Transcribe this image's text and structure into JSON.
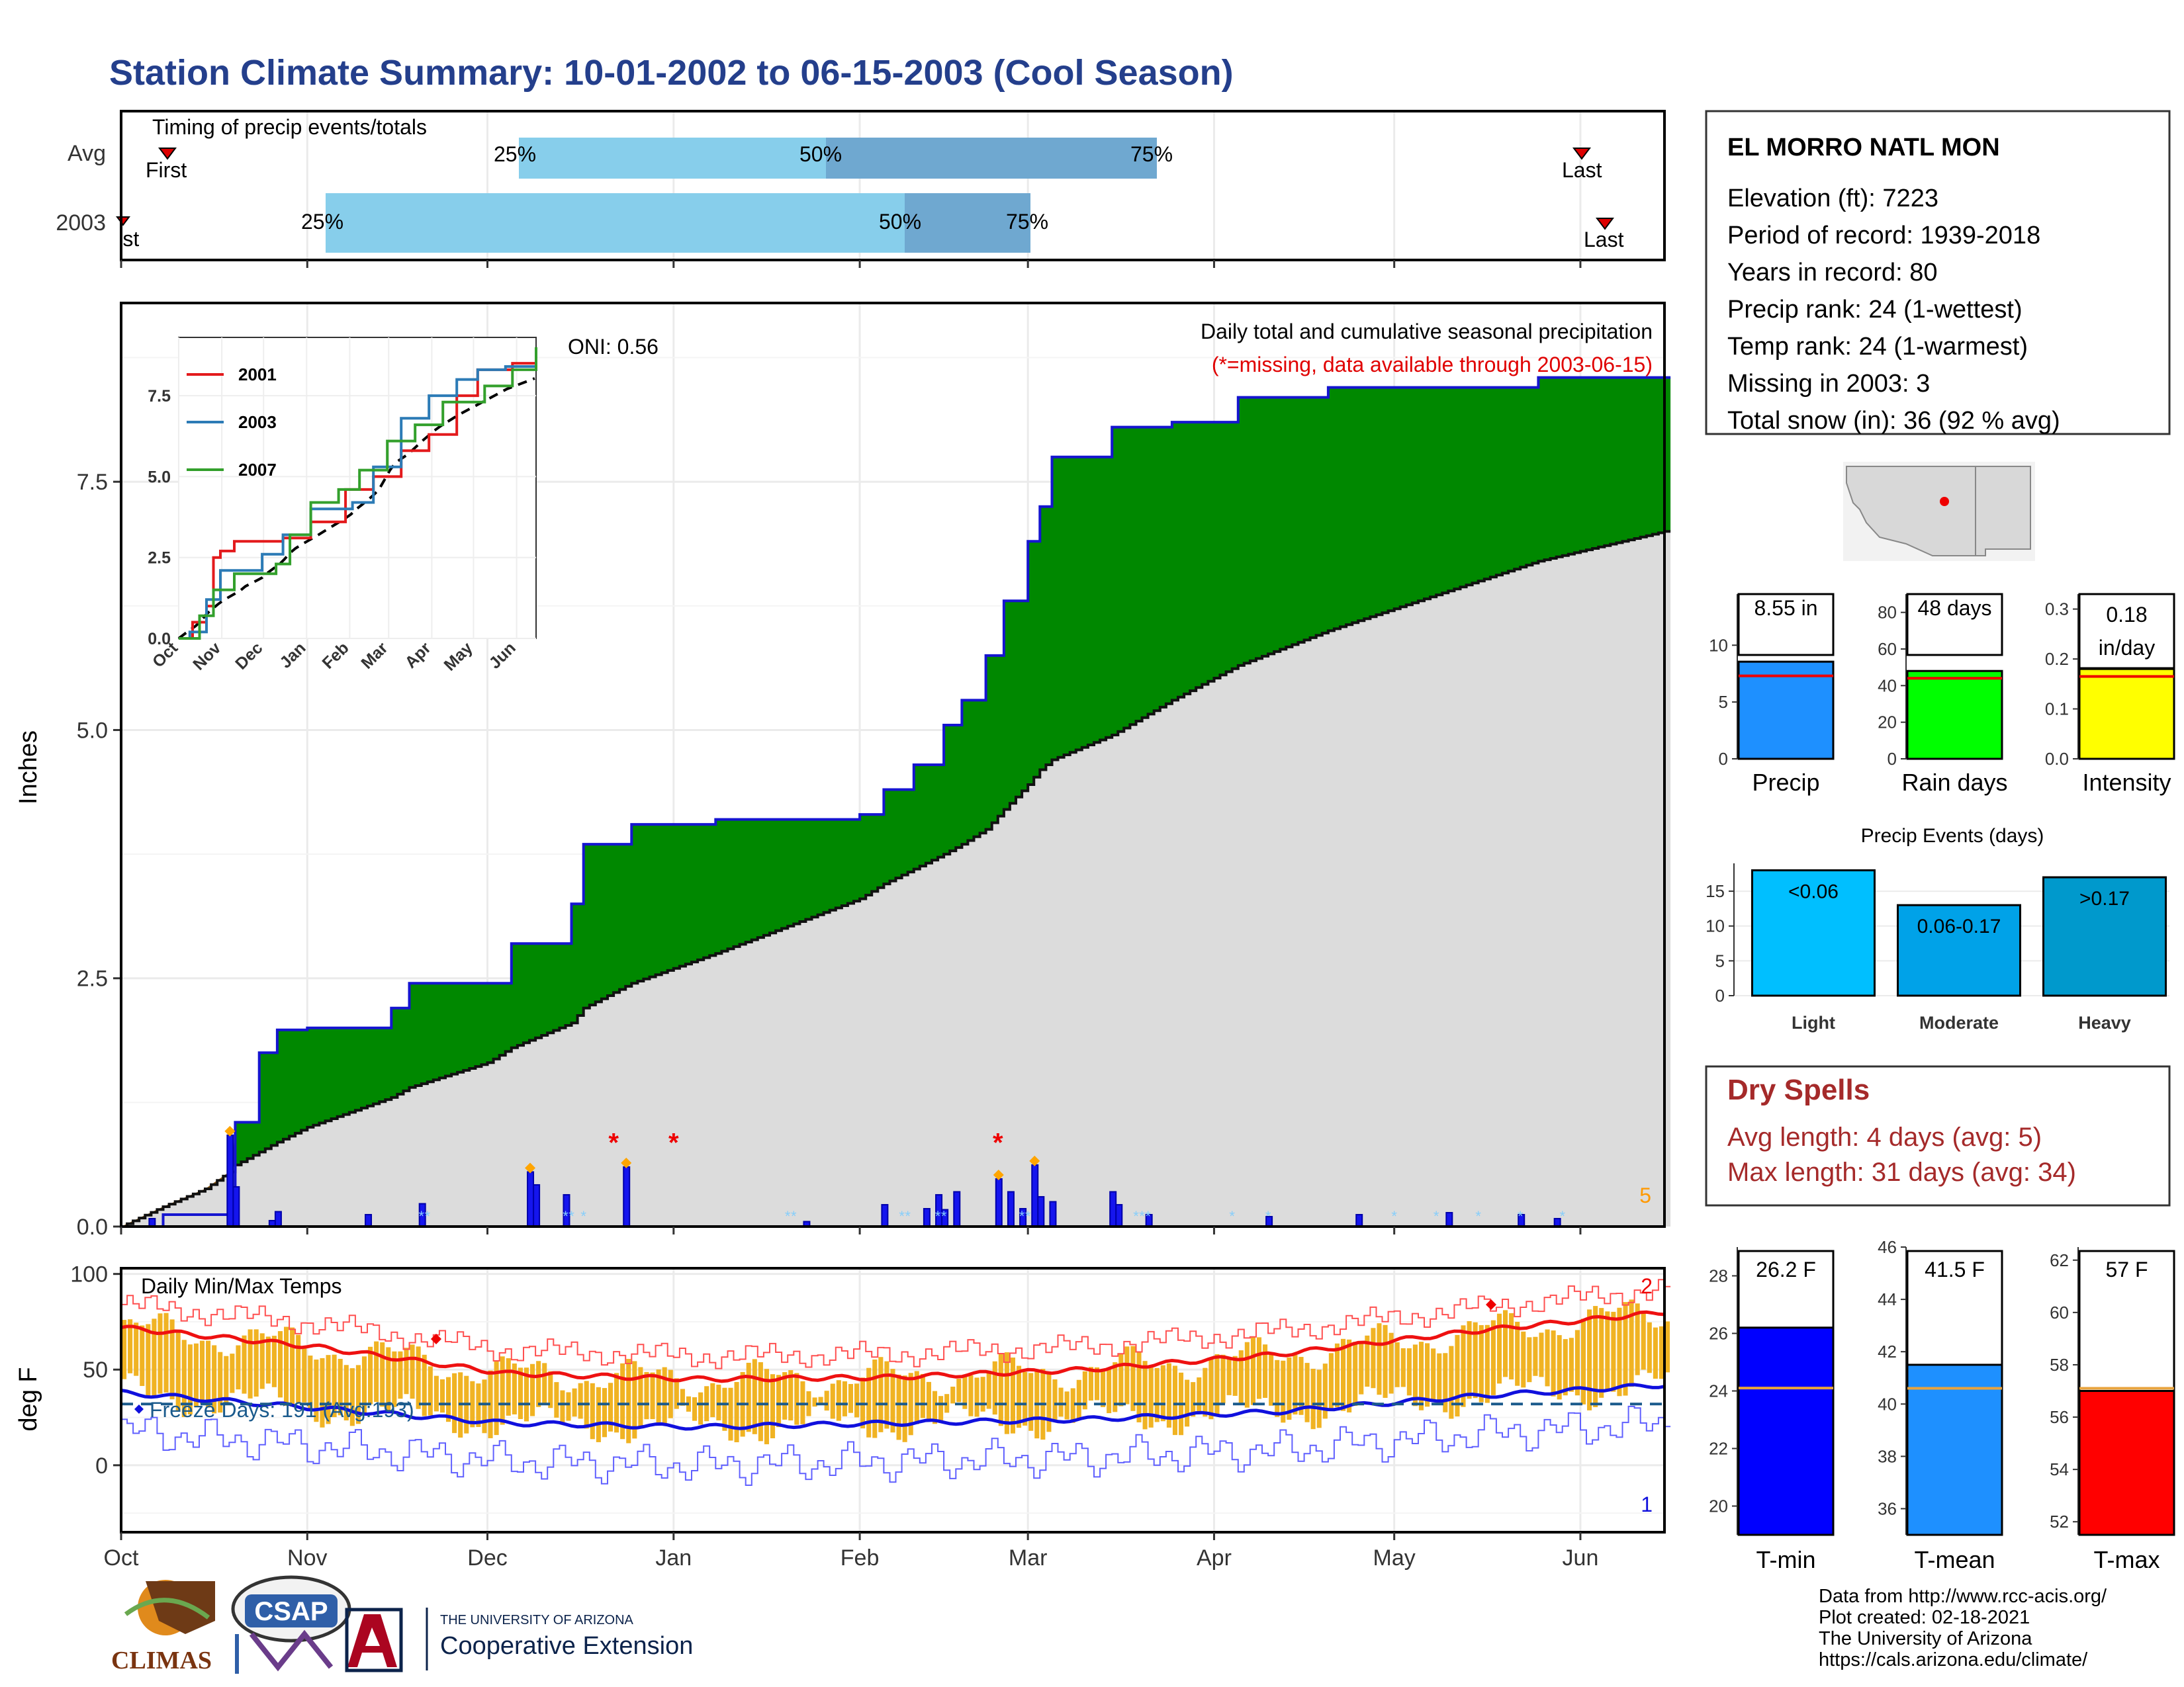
{
  "title": "Station Climate Summary: 10-01-2002 to 06-15-2003 (Cool Season)",
  "timing_panel": {
    "label": "Timing of precip events/totals",
    "rows": [
      "Avg",
      "2003"
    ],
    "avg": {
      "first": "First",
      "last": "Last",
      "p25": "25%",
      "p50": "50%",
      "p75": "75%"
    },
    "y2003": {
      "first": "First",
      "last": "Last",
      "p25": "25%",
      "p50": "50%",
      "p75": "75%"
    }
  },
  "main_panel": {
    "note": "Daily total and cumulative seasonal precipitation",
    "missing_note": "(*=missing, data available through 2003-06-15)",
    "oni": "ONI: 0.56",
    "corner_value": "5",
    "ylabel": "Inches",
    "yticks": [
      "0.0",
      "2.5",
      "5.0",
      "7.5"
    ]
  },
  "inset": {
    "yticks": [
      "0.0",
      "2.5",
      "5.0",
      "7.5"
    ],
    "xticks": [
      "Oct",
      "Nov",
      "Dec",
      "Jan",
      "Feb",
      "Mar",
      "Apr",
      "May",
      "Jun"
    ],
    "legend": [
      "2001",
      "2003",
      "2007"
    ],
    "colors": [
      "#e31a1c",
      "#2c7bb6",
      "#33a02c"
    ]
  },
  "temp_panel": {
    "label": "Daily Min/Max Temps",
    "freeze": "Freeze Days: 191 (Avg:193)",
    "ylabel": "deg F",
    "yticks": [
      "0",
      "50",
      "100"
    ],
    "corner_top": "2",
    "corner_bottom": "1"
  },
  "xticks": [
    "Oct",
    "Nov",
    "Dec",
    "Jan",
    "Feb",
    "Mar",
    "Apr",
    "May",
    "Jun"
  ],
  "station": {
    "name": "EL MORRO NATL MON",
    "lines": [
      "Elevation (ft): 7223",
      "Period of record: 1939-2018",
      "Years in record: 80",
      "Precip rank: 24 (1-wettest)",
      "Temp rank: 24 (1-warmest)",
      "Missing in 2003: 3",
      "Total snow (in): 36 (92 % avg)"
    ]
  },
  "summary_bars": [
    {
      "name": "Precip",
      "value_label": "8.55 in",
      "color": "#1e90ff",
      "yticks": [
        "0",
        "5",
        "10"
      ]
    },
    {
      "name": "Rain days",
      "value_label": "48 days",
      "color": "#00ff00",
      "yticks": [
        "0",
        "20",
        "40",
        "60",
        "80"
      ]
    },
    {
      "name": "Intensity",
      "value_label_1": "0.18",
      "value_label_2": "in/day",
      "color": "#ffff00",
      "yticks": [
        "0.0",
        "0.1",
        "0.2",
        "0.3"
      ]
    }
  ],
  "events": {
    "title": "Precip Events (days)",
    "yticks": [
      "0",
      "5",
      "10",
      "15"
    ],
    "bars": [
      {
        "name": "Light",
        "label": "<0.06",
        "color": "#00bfff"
      },
      {
        "name": "Moderate",
        "label": "0.06-0.17",
        "color": "#00a2e8"
      },
      {
        "name": "Heavy",
        "label": ">0.17",
        "color": "#0099cc"
      }
    ]
  },
  "dry_spells": {
    "title": "Dry Spells",
    "avg": "Avg length: 4 days (avg: 5)",
    "max": "Max length: 31 days (avg: 34)"
  },
  "temp_bars": [
    {
      "name": "T-min",
      "value_label": "26.2 F",
      "color": "#0000ff",
      "yticks": [
        "20",
        "22",
        "24",
        "26",
        "28"
      ]
    },
    {
      "name": "T-mean",
      "value_label": "41.5 F",
      "color": "#1e90ff",
      "yticks": [
        "36",
        "38",
        "40",
        "42",
        "44",
        "46"
      ]
    },
    {
      "name": "T-max",
      "value_label": "57 F",
      "color": "#ff0000",
      "yticks": [
        "52",
        "54",
        "56",
        "58",
        "60",
        "62"
      ]
    }
  ],
  "footer": {
    "lines": [
      "Data from http://www.rcc-acis.org/",
      "Plot created: 02-18-2021",
      "The University of Arizona",
      "https://cals.arizona.edu/climate/"
    ],
    "climas": "CLIMAS",
    "csap": "CSAP",
    "ua_small": "THE UNIVERSITY OF ARIZONA",
    "ua_big": "Cooperative Extension"
  },
  "chart_data": [
    {
      "type": "area",
      "description_of_series": "cumulative seasonal precipitation, 2002-03 vs average",
      "x": [
        "10-01",
        "10-08",
        "10-15",
        "10-19",
        "10-20",
        "10-24",
        "10-27",
        "11-01",
        "11-15",
        "11-18",
        "12-01",
        "12-05",
        "12-15",
        "12-17",
        "12-25",
        "01-08",
        "02-01",
        "02-05",
        "02-10",
        "02-15",
        "02-18",
        "02-22",
        "02-25",
        "03-01",
        "03-03",
        "03-05",
        "03-15",
        "03-25",
        "04-05",
        "04-20",
        "05-10",
        "05-25",
        "06-15"
      ],
      "series": [
        {
          "name": "2003",
          "values": [
            0.0,
            0.12,
            0.12,
            0.12,
            1.05,
            1.75,
            1.98,
            2.0,
            2.2,
            2.45,
            2.45,
            2.85,
            3.25,
            3.85,
            4.05,
            4.1,
            4.15,
            4.4,
            4.65,
            5.05,
            5.3,
            5.75,
            6.3,
            6.9,
            7.25,
            7.75,
            8.05,
            8.1,
            8.35,
            8.45,
            8.45,
            8.55,
            8.55
          ]
        },
        {
          "name": "Avg",
          "values": [
            0.0,
            0.2,
            0.38,
            0.55,
            0.62,
            0.75,
            0.85,
            1.0,
            1.3,
            1.4,
            1.65,
            1.8,
            2.05,
            2.2,
            2.45,
            2.75,
            3.3,
            3.45,
            3.6,
            3.75,
            3.85,
            4.0,
            4.2,
            4.45,
            4.6,
            4.7,
            4.95,
            5.3,
            5.65,
            6.0,
            6.4,
            6.7,
            7.0
          ]
        }
      ],
      "ylim": [
        0,
        9.3
      ]
    },
    {
      "type": "bar",
      "name": "daily precipitation (inches)",
      "x": [
        "10-06",
        "10-19",
        "10-20",
        "10-26",
        "10-27",
        "11-11",
        "11-20",
        "12-08",
        "12-09",
        "12-14",
        "12-24",
        "01-23",
        "02-05",
        "02-12",
        "02-14",
        "02-15",
        "02-17",
        "02-24",
        "02-26",
        "02-28",
        "03-02",
        "03-03",
        "03-05",
        "03-15",
        "03-16",
        "03-21",
        "04-10",
        "04-25",
        "05-10",
        "05-22",
        "05-28"
      ],
      "values": [
        0.08,
        0.92,
        0.4,
        0.06,
        0.15,
        0.12,
        0.23,
        0.55,
        0.42,
        0.32,
        0.6,
        0.05,
        0.22,
        0.18,
        0.32,
        0.17,
        0.35,
        0.48,
        0.35,
        0.18,
        0.62,
        0.3,
        0.25,
        0.35,
        0.22,
        0.12,
        0.1,
        0.12,
        0.14,
        0.12,
        0.08
      ]
    },
    {
      "type": "bar",
      "name": "Summary: Precip / Rain days / Intensity",
      "categories": [
        "Precip",
        "Rain days",
        "Intensity"
      ],
      "values": [
        8.55,
        48,
        0.18
      ],
      "avg": [
        7.3,
        44,
        0.165
      ]
    },
    {
      "type": "bar",
      "name": "Precip Events (days)",
      "categories": [
        "Light",
        "Moderate",
        "Heavy"
      ],
      "values": [
        18,
        13,
        17
      ],
      "ylim": [
        0,
        18
      ]
    },
    {
      "type": "bar",
      "name": "Seasonal temperatures",
      "categories": [
        "T-min",
        "T-mean",
        "T-max"
      ],
      "values": [
        26.2,
        41.5,
        57
      ],
      "avg": [
        24.1,
        40.6,
        57.1
      ]
    },
    {
      "type": "line",
      "name": "Daily Min/Max Temps",
      "x_months": [
        "Oct",
        "Nov",
        "Dec",
        "Jan",
        "Feb",
        "Mar",
        "Apr",
        "May",
        "Jun"
      ],
      "avg_max_F": [
        72,
        62,
        48,
        45,
        46,
        50,
        58,
        70,
        80
      ],
      "avg_min_F": [
        38,
        30,
        22,
        20,
        22,
        24,
        28,
        36,
        42
      ],
      "ylim": [
        -35,
        103
      ]
    }
  ]
}
